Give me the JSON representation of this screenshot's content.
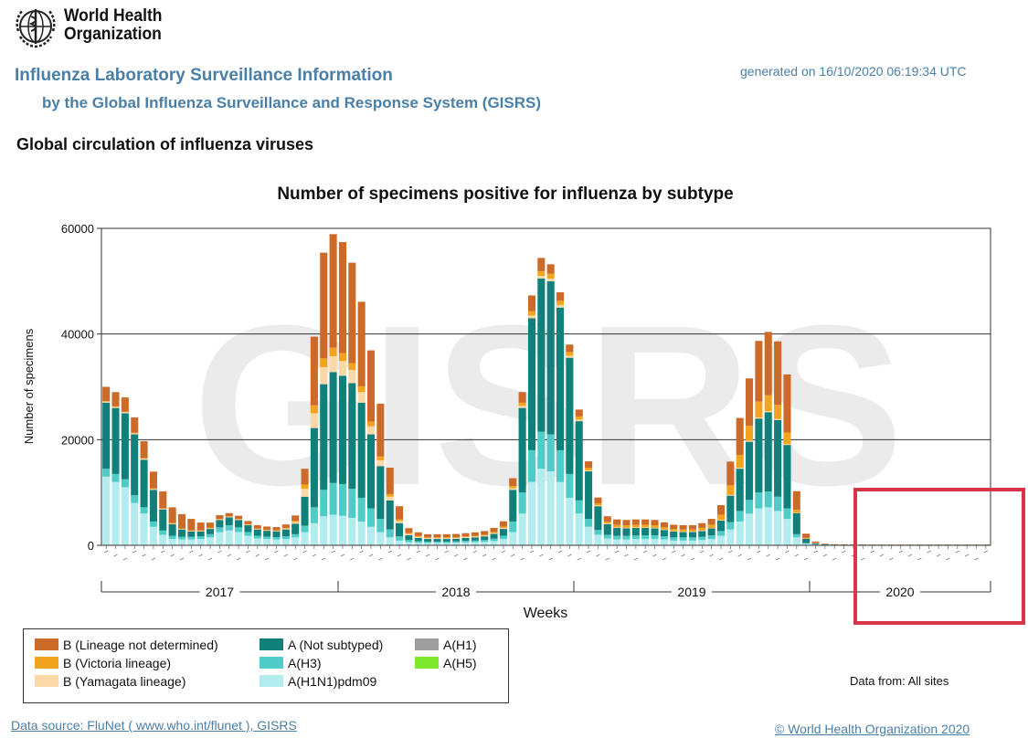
{
  "org": {
    "name_line1": "World Health",
    "name_line2": "Organization"
  },
  "header": {
    "title": "Influenza Laboratory Surveillance Information",
    "subtitle": "by the Global Influenza Surveillance and Response System (GISRS)",
    "generated": "generated on 16/10/2020 06:19:34 UTC"
  },
  "section_title": "Global circulation of influenza viruses",
  "chart_data": {
    "type": "bar",
    "stacked": true,
    "title": "Number of specimens positive for influenza by subtype",
    "xlabel": "Weeks",
    "ylabel": "Number of specimens",
    "ylim": [
      0,
      60000
    ],
    "yticks": [
      0,
      20000,
      40000,
      60000
    ],
    "watermark": "GISRS",
    "year_labels": [
      "2017",
      "2018",
      "2019",
      "2020"
    ],
    "grid": true,
    "colors": {
      "B (Lineage not determined)": "#cc6a2a",
      "B (Victoria lineage)": "#f0a420",
      "B (Yamagata lineage)": "#fad8a8",
      "A (Not subtyped)": "#12807a",
      "A(H3)": "#4fcbc8",
      "A(H1N1)pdm09": "#b2ecee",
      "A(H1)": "#9e9e9e",
      "A(H5)": "#7ee82a"
    },
    "series": [
      {
        "name": "A(H1N1)pdm09",
        "values": [
          13000,
          12000,
          11000,
          8000,
          6000,
          3500,
          2000,
          1200,
          1100,
          1100,
          1200,
          1500,
          2500,
          2800,
          2500,
          1800,
          1300,
          1200,
          1100,
          1200,
          1500,
          2500,
          4200,
          5500,
          5800,
          5600,
          5200,
          4500,
          3500,
          2500,
          1500,
          900,
          600,
          500,
          450,
          450,
          450,
          500,
          550,
          600,
          650,
          800,
          1200,
          2500,
          6000,
          12000,
          14500,
          14000,
          12000,
          9000,
          6000,
          3500,
          2000,
          1300,
          1100,
          1100,
          1200,
          1200,
          1200,
          1100,
          900,
          900,
          900,
          1000,
          1200,
          1800,
          3000,
          4500,
          6000,
          7000,
          7200,
          6500,
          5000,
          1500,
          300,
          150,
          80,
          60,
          50,
          50,
          50,
          40,
          40,
          40,
          40,
          40,
          40,
          40,
          40,
          40,
          40,
          40,
          40,
          40
        ]
      },
      {
        "name": "A(H3)",
        "values": [
          1500,
          1500,
          1500,
          1500,
          1200,
          1000,
          800,
          600,
          500,
          500,
          500,
          600,
          900,
          1000,
          900,
          700,
          500,
          450,
          450,
          500,
          600,
          1200,
          3000,
          5000,
          6000,
          6000,
          5500,
          4500,
          3500,
          2500,
          1500,
          800,
          400,
          300,
          250,
          250,
          250,
          250,
          300,
          300,
          350,
          450,
          600,
          2000,
          4000,
          6000,
          7000,
          7000,
          6000,
          4500,
          2500,
          1500,
          900,
          700,
          700,
          700,
          700,
          700,
          700,
          600,
          600,
          600,
          600,
          600,
          700,
          900,
          1400,
          2000,
          2600,
          3000,
          3000,
          2700,
          2000,
          600,
          150,
          60,
          30,
          20,
          20,
          20,
          15,
          15,
          15,
          15,
          15,
          15,
          15,
          15,
          15,
          15,
          15,
          15,
          15,
          15
        ]
      },
      {
        "name": "A (Not subtyped)",
        "values": [
          12500,
          12500,
          12500,
          11500,
          9000,
          6000,
          4000,
          2200,
          1400,
          1000,
          900,
          1000,
          1400,
          1500,
          1400,
          1300,
          1200,
          1100,
          1100,
          1300,
          2000,
          5500,
          15000,
          20000,
          21000,
          20500,
          20000,
          18000,
          14000,
          10000,
          5500,
          2500,
          900,
          600,
          500,
          500,
          500,
          500,
          550,
          600,
          700,
          900,
          1300,
          6000,
          16000,
          25000,
          29000,
          29000,
          27000,
          22000,
          15000,
          9000,
          4500,
          2000,
          1500,
          1400,
          1400,
          1400,
          1300,
          1200,
          1100,
          1000,
          1000,
          1100,
          1300,
          2000,
          5000,
          8000,
          11000,
          14000,
          15000,
          14500,
          12000,
          4000,
          800,
          200,
          100,
          80,
          60,
          50,
          50,
          40,
          40,
          40,
          40,
          40,
          40,
          40,
          40,
          40,
          40,
          40,
          40,
          40
        ]
      },
      {
        "name": "B (Yamagata lineage)",
        "values": [
          200,
          200,
          200,
          200,
          200,
          150,
          120,
          100,
          100,
          100,
          100,
          100,
          100,
          100,
          100,
          100,
          100,
          100,
          100,
          150,
          300,
          1500,
          2800,
          3200,
          3000,
          2800,
          2500,
          2000,
          1500,
          1100,
          700,
          400,
          250,
          200,
          150,
          150,
          150,
          150,
          150,
          150,
          150,
          150,
          200,
          300,
          400,
          500,
          500,
          500,
          500,
          400,
          300,
          200,
          150,
          100,
          100,
          100,
          100,
          100,
          100,
          100,
          100,
          100,
          100,
          100,
          100,
          100,
          150,
          200,
          200,
          200,
          200,
          200,
          150,
          50,
          10,
          5,
          0,
          0,
          0,
          0,
          0,
          0,
          0,
          0,
          0,
          0,
          0,
          0,
          0,
          0,
          0,
          0,
          0,
          0
        ]
      },
      {
        "name": "B (Victoria lineage)",
        "values": [
          100,
          100,
          100,
          100,
          100,
          100,
          100,
          100,
          100,
          100,
          100,
          100,
          100,
          100,
          100,
          100,
          100,
          100,
          100,
          150,
          250,
          800,
          1500,
          1700,
          1600,
          1500,
          1300,
          1100,
          900,
          700,
          500,
          300,
          200,
          150,
          150,
          150,
          150,
          150,
          150,
          150,
          150,
          200,
          250,
          400,
          600,
          800,
          900,
          900,
          800,
          700,
          600,
          500,
          400,
          400,
          500,
          500,
          500,
          500,
          500,
          450,
          400,
          400,
          400,
          500,
          600,
          1000,
          1800,
          2400,
          2800,
          3000,
          3000,
          2700,
          2200,
          600,
          150,
          50,
          20,
          10,
          10,
          10,
          10,
          10,
          10,
          10,
          10,
          10,
          10,
          10,
          10,
          10,
          10,
          10,
          10,
          10
        ]
      },
      {
        "name": "B (Lineage not determined)",
        "values": [
          2700,
          2700,
          2700,
          2900,
          3200,
          3200,
          3200,
          3000,
          2700,
          2200,
          1500,
          1000,
          700,
          600,
          600,
          600,
          600,
          600,
          600,
          650,
          1000,
          3000,
          13000,
          20000,
          21500,
          21000,
          19000,
          16000,
          13500,
          10000,
          5000,
          2500,
          900,
          700,
          600,
          600,
          600,
          600,
          600,
          650,
          700,
          800,
          1000,
          1500,
          2000,
          3000,
          2500,
          1800,
          1600,
          1400,
          1300,
          1200,
          1100,
          1000,
          1000,
          1000,
          1000,
          1000,
          1000,
          900,
          800,
          800,
          800,
          900,
          1100,
          1800,
          4500,
          7000,
          9000,
          11500,
          12000,
          12000,
          11000,
          3500,
          800,
          250,
          80,
          40,
          30,
          20,
          20,
          20,
          20,
          20,
          20,
          20,
          20,
          20,
          20,
          20,
          20,
          20,
          20,
          20
        ]
      },
      {
        "name": "A(H1)",
        "values": [
          0,
          0,
          0,
          0,
          0,
          0,
          0,
          0,
          0,
          0,
          0,
          0,
          0,
          0,
          0,
          0,
          0,
          0,
          0,
          0,
          0,
          0,
          0,
          0,
          0,
          0,
          0,
          0,
          0,
          0,
          0,
          0,
          0,
          0,
          0,
          0,
          0,
          0,
          0,
          0,
          0,
          0,
          0,
          0,
          0,
          0,
          0,
          0,
          0,
          0,
          0,
          0,
          0,
          0,
          0,
          0,
          0,
          0,
          0,
          0,
          0,
          0,
          0,
          0,
          0,
          0,
          0,
          0,
          0,
          0,
          0,
          0,
          0,
          0,
          0,
          0,
          0,
          0,
          0,
          0,
          0,
          0,
          0,
          0,
          0,
          0,
          0,
          0,
          0,
          0,
          0,
          0,
          0,
          0
        ]
      },
      {
        "name": "A(H5)",
        "values": [
          0,
          0,
          0,
          0,
          0,
          0,
          0,
          0,
          0,
          0,
          0,
          0,
          0,
          0,
          0,
          0,
          0,
          0,
          0,
          0,
          0,
          0,
          0,
          0,
          0,
          0,
          0,
          0,
          0,
          0,
          0,
          0,
          0,
          0,
          0,
          0,
          0,
          0,
          0,
          0,
          0,
          0,
          0,
          0,
          0,
          0,
          0,
          0,
          0,
          0,
          0,
          0,
          0,
          0,
          0,
          0,
          0,
          0,
          0,
          0,
          0,
          0,
          0,
          0,
          0,
          0,
          0,
          0,
          0,
          0,
          0,
          0,
          0,
          0,
          0,
          0,
          0,
          0,
          0,
          0,
          0,
          0,
          0,
          0,
          0,
          0,
          0,
          0,
          0,
          0,
          0,
          0,
          0,
          0
        ]
      }
    ]
  },
  "legend": {
    "items": [
      {
        "label": "B (Lineage not determined)",
        "color": "#cc6a2a"
      },
      {
        "label": "B (Victoria lineage)",
        "color": "#f0a420"
      },
      {
        "label": "B (Yamagata lineage)",
        "color": "#fad8a8"
      },
      {
        "label": "A (Not subtyped)",
        "color": "#12807a"
      },
      {
        "label": "A(H3)",
        "color": "#4fcbc8"
      },
      {
        "label": "A(H1N1)pdm09",
        "color": "#b2ecee"
      },
      {
        "label": "A(H1)",
        "color": "#9e9e9e"
      },
      {
        "label": "A(H5)",
        "color": "#7ee82a"
      }
    ]
  },
  "data_from": "Data from: All sites",
  "footer": {
    "data_source": "Data source: FluNet ( www.who.int/flunet ), GISRS",
    "copyright": "© World Health Organization 2020"
  },
  "highlight_color": "#d8344a"
}
